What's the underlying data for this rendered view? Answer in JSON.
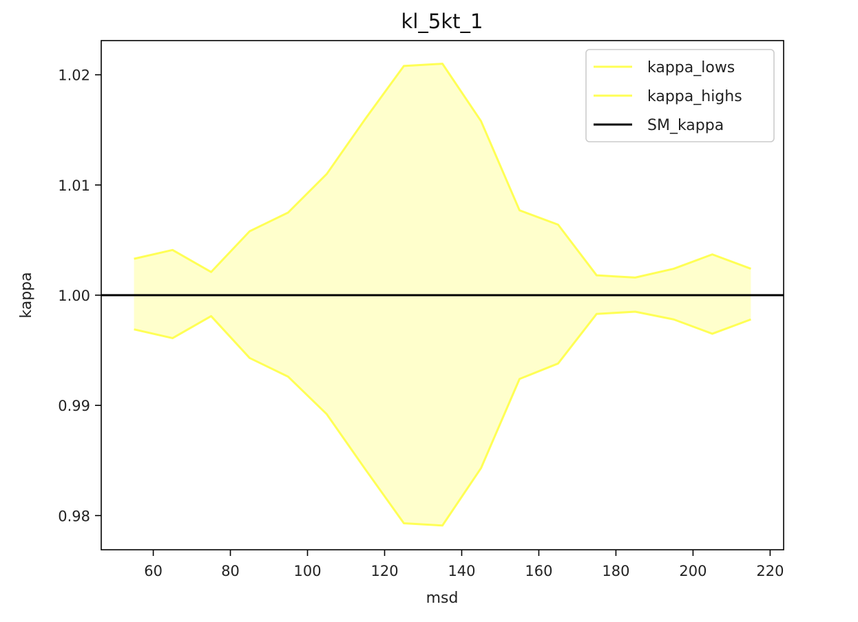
{
  "chart_data": {
    "type": "line",
    "title": "kl_5kt_1",
    "xlabel": "msd",
    "ylabel": "kappa",
    "xlim": [
      46.5,
      223.5
    ],
    "ylim": [
      0.9769,
      1.0231
    ],
    "x_ticks": [
      60,
      80,
      100,
      120,
      140,
      160,
      180,
      200,
      220
    ],
    "x_tick_labels": [
      "60",
      "80",
      "100",
      "120",
      "140",
      "160",
      "180",
      "200",
      "220"
    ],
    "y_ticks": [
      0.98,
      0.99,
      1.0,
      1.01,
      1.02
    ],
    "y_tick_labels": [
      "0.98",
      "0.99",
      "1.00",
      "1.01",
      "1.02"
    ],
    "grid": false,
    "legend_position": "top-right",
    "x": [
      55,
      65,
      75,
      85,
      95,
      105,
      115,
      125,
      135,
      145,
      155,
      165,
      175,
      185,
      195,
      205,
      215
    ],
    "series": [
      {
        "name": "kappa_lows",
        "color": "#ffff55",
        "values": [
          0.9969,
          0.9961,
          0.9981,
          0.9943,
          0.9926,
          0.9892,
          0.9842,
          0.9793,
          0.9791,
          0.9843,
          0.9924,
          0.9938,
          0.9983,
          0.9985,
          0.9978,
          0.9965,
          0.9978
        ]
      },
      {
        "name": "kappa_highs",
        "color": "#ffff55",
        "values": [
          1.0033,
          1.0041,
          1.0021,
          1.0058,
          1.0075,
          1.011,
          1.016,
          1.0208,
          1.021,
          1.0158,
          1.0077,
          1.0064,
          1.0018,
          1.0016,
          1.0024,
          1.0037,
          1.0024
        ]
      },
      {
        "name": "SM_kappa",
        "color": "#000000",
        "type": "hline",
        "value": 1.0
      }
    ],
    "fill_between": {
      "lower": "kappa_lows",
      "upper": "kappa_highs",
      "color": "#ffffcc"
    }
  }
}
